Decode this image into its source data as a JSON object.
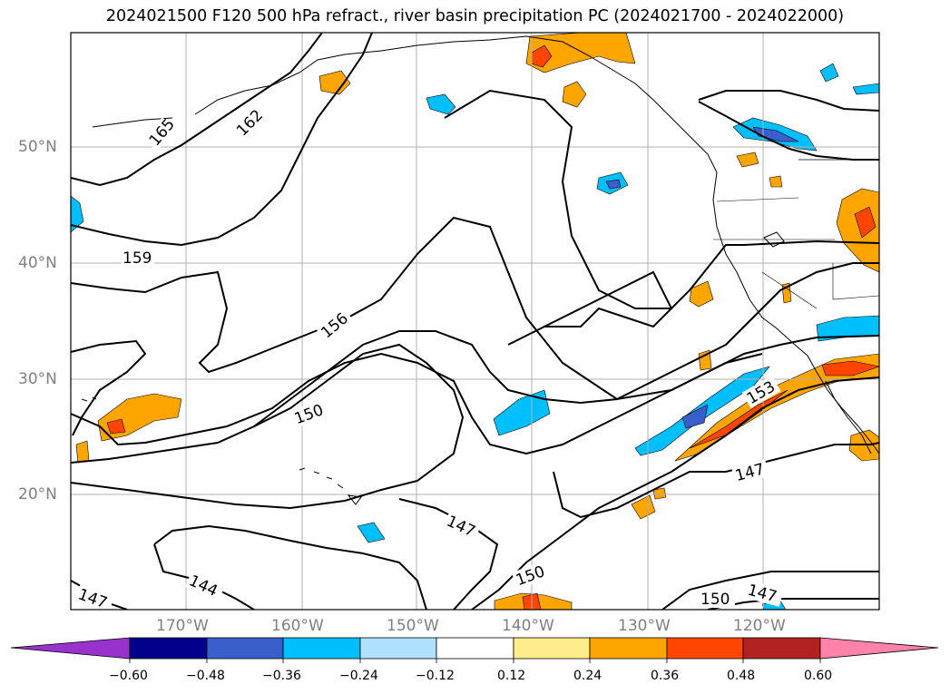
{
  "title": "2024021500 F120 500 hPa refract., river basin precipitation PC (2024021700 - 2024022000)",
  "lat_labels": [
    "50°N",
    "40°N",
    "30°N",
    "20°N"
  ],
  "lon_labels": [
    "170°W",
    "160°W",
    "150°W",
    "140°W",
    "130°W",
    "120°W"
  ],
  "contour_labels": [
    "165",
    "162",
    "159",
    "156",
    "150",
    "153",
    "147",
    "147",
    "150",
    "144",
    "147",
    "150",
    "147"
  ],
  "colorbar": {
    "labels": [
      "−0.60",
      "−0.48",
      "−0.36",
      "−0.24",
      "−0.12",
      "0.12",
      "0.24",
      "0.36",
      "0.48",
      "0.60"
    ],
    "colors": [
      "#9932cc",
      "#00008b",
      "#3a5fcd",
      "#00bfff",
      "#b0e2ff",
      "#ffffff",
      "#ffec8b",
      "#ffa500",
      "#ff4500",
      "#b22222",
      "#ff82ab"
    ]
  },
  "colors": {
    "grid": "#b0b0b0",
    "contour": "#000000",
    "label_gray": "#808080"
  }
}
